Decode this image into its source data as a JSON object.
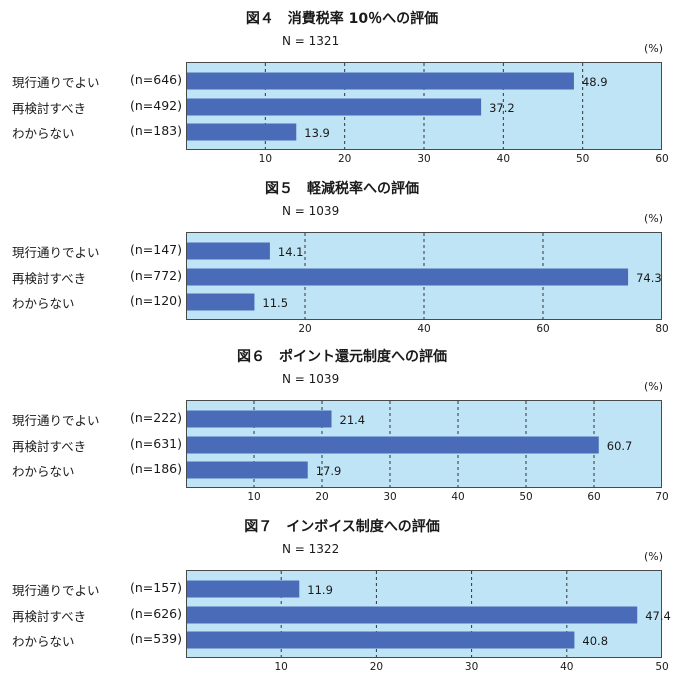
{
  "colors": {
    "bar": "#4a6cb8",
    "plot_background": "#bfe4f6",
    "gridline": "#333333"
  },
  "chart_data": [
    {
      "type": "bar",
      "orientation": "horizontal",
      "title": "図４　消費税率 10％への評価",
      "sample_size": "N = 1321",
      "unit": "(%)",
      "xlim": [
        0,
        60
      ],
      "ticks": [
        10,
        20,
        30,
        40,
        50,
        60
      ],
      "grid": true,
      "categories": [
        "現行通りでよい",
        "再検討すべき",
        "わからない"
      ],
      "counts": [
        "(n=646)",
        "(n=492)",
        "(n=183)"
      ],
      "values": [
        48.9,
        37.2,
        13.9
      ],
      "value_labels": [
        "48.9",
        "37.2",
        "13.9"
      ]
    },
    {
      "type": "bar",
      "orientation": "horizontal",
      "title": "図５　軽減税率への評価",
      "sample_size": "N = 1039",
      "unit": "(%)",
      "xlim": [
        0,
        80
      ],
      "ticks": [
        20,
        40,
        60,
        80
      ],
      "grid": true,
      "categories": [
        "現行通りでよい",
        "再検討すべき",
        "わからない"
      ],
      "counts": [
        "(n=147)",
        "(n=772)",
        "(n=120)"
      ],
      "values": [
        14.1,
        74.3,
        11.5
      ],
      "value_labels": [
        "14.1",
        "74.3",
        "11.5"
      ]
    },
    {
      "type": "bar",
      "orientation": "horizontal",
      "title": "図６　ポイント還元制度への評価",
      "sample_size": "N = 1039",
      "unit": "(%)",
      "xlim": [
        0,
        70
      ],
      "ticks": [
        10,
        20,
        30,
        40,
        50,
        60,
        70
      ],
      "grid": true,
      "categories": [
        "現行通りでよい",
        "再検討すべき",
        "わからない"
      ],
      "counts": [
        "(n=222)",
        "(n=631)",
        "(n=186)"
      ],
      "values": [
        21.4,
        60.7,
        17.9
      ],
      "value_labels": [
        "21.4",
        "60.7",
        "17.9"
      ]
    },
    {
      "type": "bar",
      "orientation": "horizontal",
      "title": "図７　インボイス制度への評価",
      "sample_size": "N = 1322",
      "unit": "(%)",
      "xlim": [
        0,
        50
      ],
      "ticks": [
        10,
        20,
        30,
        40,
        50
      ],
      "grid": true,
      "categories": [
        "現行通りでよい",
        "再検討すべき",
        "わからない"
      ],
      "counts": [
        "(n=157)",
        "(n=626)",
        "(n=539)"
      ],
      "values": [
        11.9,
        47.4,
        40.8
      ],
      "value_labels": [
        "11.9",
        "47.4",
        "40.8"
      ]
    }
  ]
}
